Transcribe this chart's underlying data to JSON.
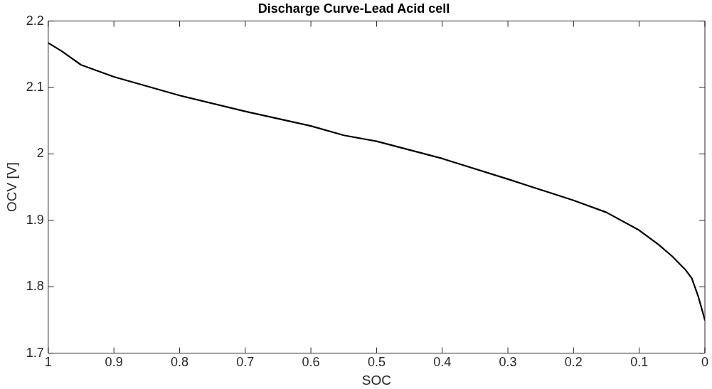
{
  "chart_data": {
    "type": "line",
    "title": "Discharge Curve-Lead Acid cell",
    "xlabel": "SOC",
    "ylabel": "OCV [V]",
    "x": [
      1,
      0.98,
      0.95,
      0.9,
      0.8,
      0.7,
      0.6,
      0.55,
      0.5,
      0.4,
      0.3,
      0.2,
      0.15,
      0.1,
      0.07,
      0.05,
      0.03,
      0.02,
      0.01,
      0
    ],
    "series": [
      {
        "color": "#000000",
        "values": [
          2.167,
          2.155,
          2.134,
          2.116,
          2.088,
          2.064,
          2.042,
          2.028,
          2.019,
          1.993,
          1.962,
          1.93,
          1.912,
          1.885,
          1.863,
          1.846,
          1.826,
          1.813,
          1.785,
          1.75
        ]
      }
    ],
    "xlim": [
      1,
      0
    ],
    "ylim": [
      1.7,
      2.2
    ],
    "xticks": [
      1,
      0.9,
      0.8,
      0.7,
      0.6,
      0.5,
      0.4,
      0.3,
      0.2,
      0.1,
      0
    ],
    "yticks": [
      1.7,
      1.8,
      1.9,
      2,
      2.1,
      2.2
    ],
    "grid": false,
    "legend": false,
    "marker": "none",
    "line_style": "solid"
  }
}
